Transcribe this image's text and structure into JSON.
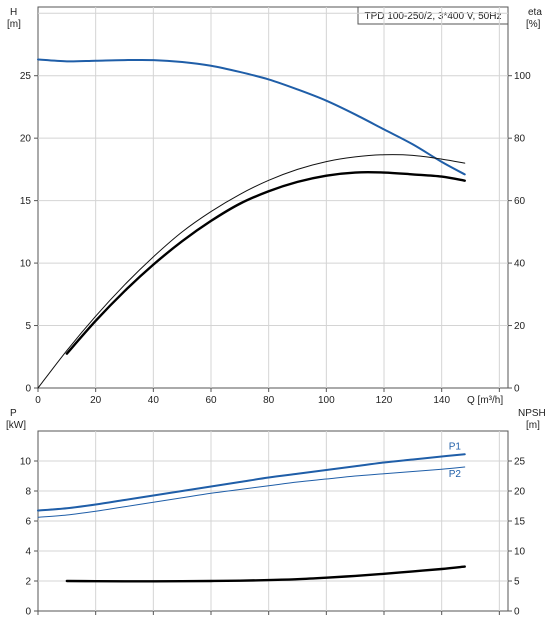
{
  "header": "TPD 100-250/2, 3*400 V, 50Hz",
  "chart_data": [
    {
      "type": "line",
      "panel": "top",
      "left_axis": {
        "label": "H",
        "unit": "[m]",
        "range": [
          0,
          30.5
        ],
        "ticks": [
          "0",
          "5",
          "10",
          "15",
          "20",
          "25"
        ]
      },
      "right_axis": {
        "label": "eta",
        "unit": "[%]",
        "range": [
          0,
          122
        ],
        "ticks": [
          "0",
          "20",
          "40",
          "60",
          "80",
          "100"
        ]
      },
      "x_axis": {
        "label": "Q [m³/h]",
        "range": [
          0,
          163
        ],
        "ticks": [
          "0",
          "20",
          "40",
          "60",
          "80",
          "100",
          "120",
          "140"
        ]
      },
      "grid": true,
      "series": [
        {
          "key": "H",
          "axis": "left",
          "color": "#1f5ea8",
          "width": 2,
          "x": [
            0,
            10,
            20,
            30,
            40,
            50,
            60,
            70,
            80,
            90,
            100,
            110,
            120,
            130,
            140,
            148
          ],
          "y": [
            26.3,
            26.15,
            26.2,
            26.25,
            26.25,
            26.1,
            25.8,
            25.3,
            24.7,
            23.9,
            23.0,
            21.9,
            20.7,
            19.5,
            18.1,
            17.1
          ]
        },
        {
          "key": "eta-thin",
          "axis": "right",
          "color": "#111111",
          "width": 1,
          "x": [
            0,
            10,
            20,
            30,
            40,
            50,
            60,
            70,
            80,
            90,
            100,
            110,
            120,
            130,
            140,
            148
          ],
          "y": [
            0,
            12,
            23,
            33,
            42,
            50,
            56.5,
            62,
            66.5,
            70,
            72.5,
            74,
            74.7,
            74.5,
            73.3,
            72.0
          ]
        },
        {
          "key": "eta-bold",
          "axis": "right",
          "color": "#000000",
          "width": 2.4,
          "x": [
            10,
            20,
            30,
            40,
            50,
            60,
            70,
            80,
            90,
            100,
            110,
            120,
            130,
            140,
            148
          ],
          "y": [
            11,
            21.5,
            31,
            39.5,
            47,
            53.5,
            59,
            63,
            66,
            68,
            69,
            69,
            68.4,
            67.7,
            66.4
          ]
        }
      ]
    },
    {
      "type": "line",
      "panel": "bottom",
      "left_axis": {
        "label": "P",
        "unit": "[kW]",
        "range": [
          0,
          12
        ],
        "ticks": [
          "0",
          "2",
          "4",
          "6",
          "8",
          "10"
        ]
      },
      "right_axis": {
        "label": "NPSH",
        "unit": "[m]",
        "range": [
          0,
          30
        ],
        "ticks": [
          "0",
          "5",
          "10",
          "15",
          "20",
          "25"
        ]
      },
      "x_axis": {
        "range": [
          0,
          163
        ]
      },
      "grid": true,
      "series": [
        {
          "name": "P1",
          "axis": "left",
          "color": "#1f5ea8",
          "width": 2,
          "x": [
            0,
            10,
            20,
            30,
            40,
            50,
            60,
            70,
            80,
            90,
            100,
            110,
            120,
            130,
            140,
            148
          ],
          "y": [
            6.7,
            6.85,
            7.1,
            7.4,
            7.7,
            8.0,
            8.3,
            8.6,
            8.9,
            9.15,
            9.4,
            9.65,
            9.9,
            10.1,
            10.3,
            10.45
          ]
        },
        {
          "name": "P2",
          "axis": "left",
          "color": "#1f5ea8",
          "width": 1,
          "x": [
            0,
            10,
            20,
            30,
            40,
            50,
            60,
            70,
            80,
            90,
            100,
            110,
            120,
            130,
            140,
            148
          ],
          "y": [
            6.25,
            6.4,
            6.65,
            6.95,
            7.25,
            7.55,
            7.85,
            8.1,
            8.35,
            8.6,
            8.8,
            9.0,
            9.15,
            9.3,
            9.45,
            9.6
          ]
        },
        {
          "key": "NPSH",
          "axis": "right",
          "color": "#000000",
          "width": 2.4,
          "x": [
            10,
            20,
            30,
            40,
            50,
            60,
            70,
            80,
            90,
            100,
            110,
            120,
            130,
            140,
            148
          ],
          "y": [
            5.0,
            4.97,
            4.95,
            4.95,
            4.97,
            5.0,
            5.05,
            5.15,
            5.3,
            5.55,
            5.85,
            6.2,
            6.6,
            7.0,
            7.4
          ]
        }
      ]
    }
  ]
}
